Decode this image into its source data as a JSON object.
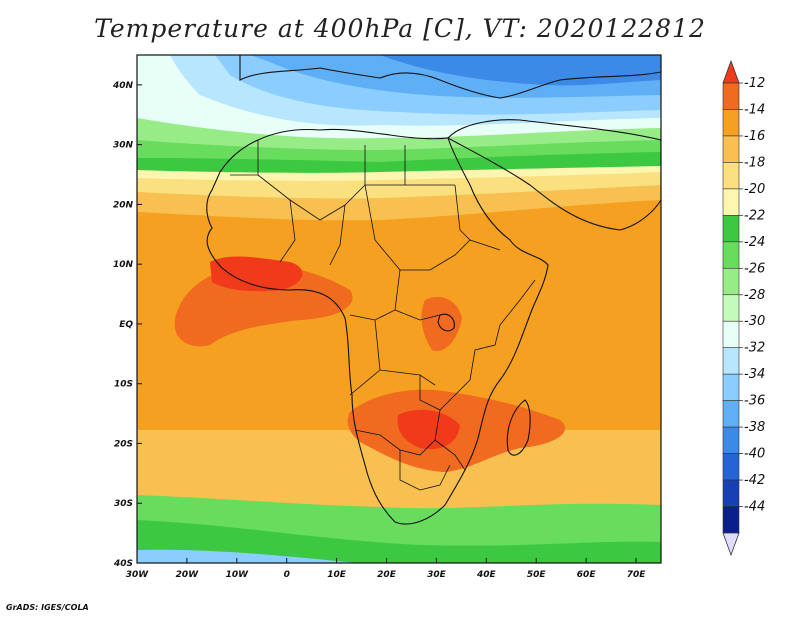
{
  "title": "Temperature at 400hPa [C], VT: 2020122812",
  "credit": "GrADS: IGES/COLA",
  "map": {
    "lon_range": [
      -30,
      75
    ],
    "lat_range": [
      -40,
      45
    ],
    "lon_ticks": [
      "30W",
      "20W",
      "10W",
      "0",
      "10E",
      "20E",
      "30E",
      "40E",
      "50E",
      "60E",
      "70E"
    ],
    "lat_ticks": [
      "40N",
      "30N",
      "20N",
      "10N",
      "EQ",
      "10S",
      "20S",
      "30S",
      "40S"
    ]
  },
  "colorbar": {
    "levels": [
      "-12",
      "-14",
      "-16",
      "-18",
      "-20",
      "-22",
      "-24",
      "-26",
      "-28",
      "-30",
      "-32",
      "-34",
      "-36",
      "-38",
      "-40",
      "-42",
      "-44"
    ],
    "colors": [
      "#f03a1a",
      "#f06a20",
      "#f5a020",
      "#f8c050",
      "#fbe080",
      "#fcf6b0",
      "#3cc840",
      "#68dc5c",
      "#98ec88",
      "#c4fabc",
      "#e8fff8",
      "#b8e6ff",
      "#8ccdff",
      "#5eaff5",
      "#3c8ae8",
      "#2464d4",
      "#1840b4",
      "#0a1e8c",
      "#e0dcff"
    ]
  },
  "field_colors": {
    "darkblue": "#3c8ae8",
    "blue": "#5eaff5",
    "lightblue": "#8ccdff",
    "paleblue": "#b8e6ff",
    "cyanwhite": "#e8fff8",
    "lightgreen": "#98ec88",
    "green": "#68dc5c",
    "darkgreen": "#3cc840",
    "paleyellow": "#fcf6b0",
    "yellow": "#fbe080",
    "lightorange": "#f8c050",
    "orange": "#f5a020",
    "darkorange": "#f06a20",
    "red": "#f03a1a"
  }
}
